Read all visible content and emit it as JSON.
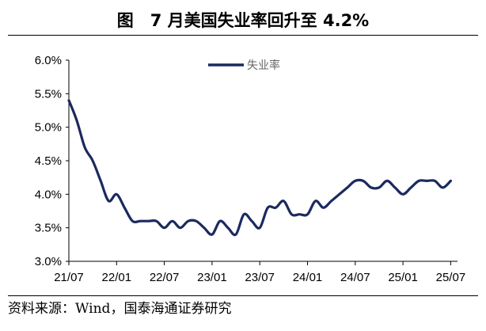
{
  "title": "图　7 月美国失业率回升至 4.2%",
  "source": "资料来源：Wind，国泰海通证券研究",
  "chart_data": {
    "type": "line",
    "title": "图　7 月美国失业率回升至 4.2%",
    "xlabel": "",
    "ylabel": "",
    "y_ticks": [
      "3.0%",
      "3.5%",
      "4.0%",
      "4.5%",
      "5.0%",
      "5.5%",
      "6.0%"
    ],
    "ylim": [
      3.0,
      6.0
    ],
    "x_ticks": [
      "21/07",
      "22/01",
      "22/07",
      "23/01",
      "23/07",
      "24/01",
      "24/07",
      "25/01",
      "25/07"
    ],
    "grid": false,
    "legend_position": "top-center",
    "series_color": "#1b2a5e",
    "series": [
      {
        "name": "失业率",
        "x": [
          "2021-07",
          "2021-08",
          "2021-09",
          "2021-10",
          "2021-11",
          "2021-12",
          "2022-01",
          "2022-02",
          "2022-03",
          "2022-04",
          "2022-05",
          "2022-06",
          "2022-07",
          "2022-08",
          "2022-09",
          "2022-10",
          "2022-11",
          "2022-12",
          "2023-01",
          "2023-02",
          "2023-03",
          "2023-04",
          "2023-05",
          "2023-06",
          "2023-07",
          "2023-08",
          "2023-09",
          "2023-10",
          "2023-11",
          "2023-12",
          "2024-01",
          "2024-02",
          "2024-03",
          "2024-04",
          "2024-05",
          "2024-06",
          "2024-07",
          "2024-08",
          "2024-09",
          "2024-10",
          "2024-11",
          "2024-12",
          "2025-01",
          "2025-02",
          "2025-03",
          "2025-04",
          "2025-05",
          "2025-06",
          "2025-07"
        ],
        "values": [
          5.4,
          5.1,
          4.7,
          4.5,
          4.2,
          3.9,
          4.0,
          3.8,
          3.6,
          3.6,
          3.6,
          3.6,
          3.5,
          3.6,
          3.5,
          3.6,
          3.6,
          3.5,
          3.4,
          3.6,
          3.5,
          3.4,
          3.7,
          3.6,
          3.5,
          3.8,
          3.8,
          3.9,
          3.7,
          3.7,
          3.7,
          3.9,
          3.8,
          3.9,
          4.0,
          4.1,
          4.2,
          4.2,
          4.1,
          4.1,
          4.2,
          4.1,
          4.0,
          4.1,
          4.2,
          4.2,
          4.2,
          4.1,
          4.2
        ]
      }
    ]
  }
}
